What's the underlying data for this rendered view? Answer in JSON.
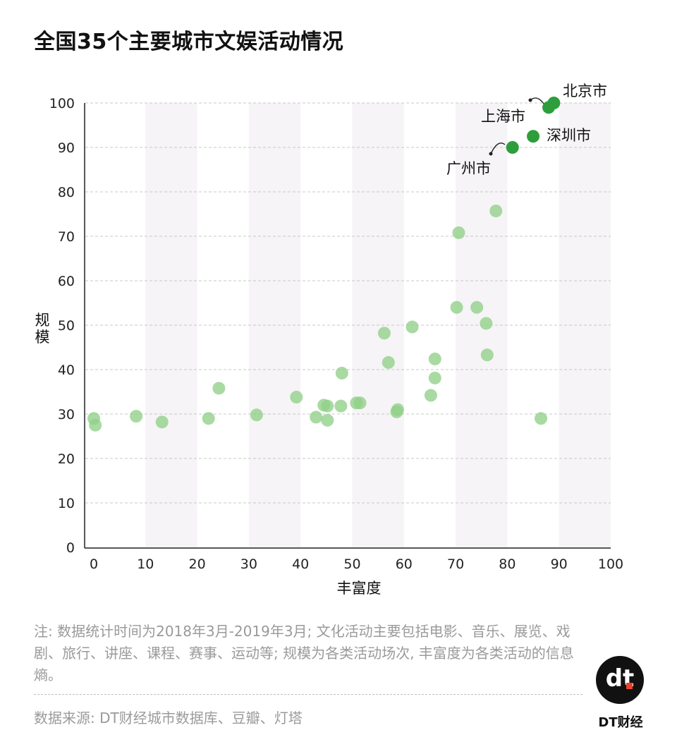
{
  "title": "全国35个主要城市文娱活动情况",
  "chart_data": {
    "type": "scatter",
    "title": "全国35个主要城市文娱活动情况",
    "xlabel": "丰富度",
    "ylabel": "规模",
    "xlim": [
      0,
      100
    ],
    "ylim": [
      0,
      100
    ],
    "xticks": [
      "0",
      "10",
      "20",
      "30",
      "40",
      "50",
      "60",
      "70",
      "80",
      "90",
      "100"
    ],
    "yticks": [
      "0",
      "10",
      "20",
      "30",
      "40",
      "50",
      "60",
      "70",
      "80",
      "90",
      "100"
    ],
    "grid": "horizontal-dashed",
    "color_highlight": "#2e9e3c",
    "color_other": "#8fcf88",
    "highlight": [
      {
        "name": "北京市",
        "x": 89,
        "y": 100
      },
      {
        "name": "上海市",
        "x": 88,
        "y": 99
      },
      {
        "name": "深圳市",
        "x": 85,
        "y": 92.5
      },
      {
        "name": "广州市",
        "x": 81,
        "y": 90
      }
    ],
    "points": [
      {
        "x": 0,
        "y": 29
      },
      {
        "x": 0.3,
        "y": 27.5
      },
      {
        "x": 8.2,
        "y": 29.5
      },
      {
        "x": 13.2,
        "y": 28.2
      },
      {
        "x": 22.2,
        "y": 29
      },
      {
        "x": 24.2,
        "y": 35.8
      },
      {
        "x": 31.5,
        "y": 29.8
      },
      {
        "x": 39.2,
        "y": 33.8
      },
      {
        "x": 43,
        "y": 29.3
      },
      {
        "x": 44.5,
        "y": 32
      },
      {
        "x": 45.2,
        "y": 31.8
      },
      {
        "x": 45.2,
        "y": 28.6
      },
      {
        "x": 47.8,
        "y": 31.8
      },
      {
        "x": 48,
        "y": 39.2
      },
      {
        "x": 50.8,
        "y": 32.5
      },
      {
        "x": 51.5,
        "y": 32.5
      },
      {
        "x": 56.2,
        "y": 48.2
      },
      {
        "x": 57,
        "y": 41.6
      },
      {
        "x": 58.6,
        "y": 30.5
      },
      {
        "x": 58.8,
        "y": 31
      },
      {
        "x": 61.6,
        "y": 49.6
      },
      {
        "x": 65.2,
        "y": 34.2
      },
      {
        "x": 66,
        "y": 42.4
      },
      {
        "x": 66,
        "y": 38.1
      },
      {
        "x": 70.2,
        "y": 54
      },
      {
        "x": 70.6,
        "y": 70.8
      },
      {
        "x": 74.1,
        "y": 54
      },
      {
        "x": 75.9,
        "y": 50.4
      },
      {
        "x": 76.1,
        "y": 43.3
      },
      {
        "x": 77.8,
        "y": 75.7
      },
      {
        "x": 86.5,
        "y": 29
      }
    ]
  },
  "note": "注: 数据统计时间为2018年3月-2019年3月; 文化活动主要包括电影、音乐、展览、戏剧、旅行、讲座、课程、赛事、运动等; 规模为各类活动场次, 丰富度为各类活动的信息熵。",
  "source": "数据来源: DT财经城市数据库、豆瓣、灯塔",
  "logo": {
    "mark": "dt",
    "name": "DT财经"
  }
}
